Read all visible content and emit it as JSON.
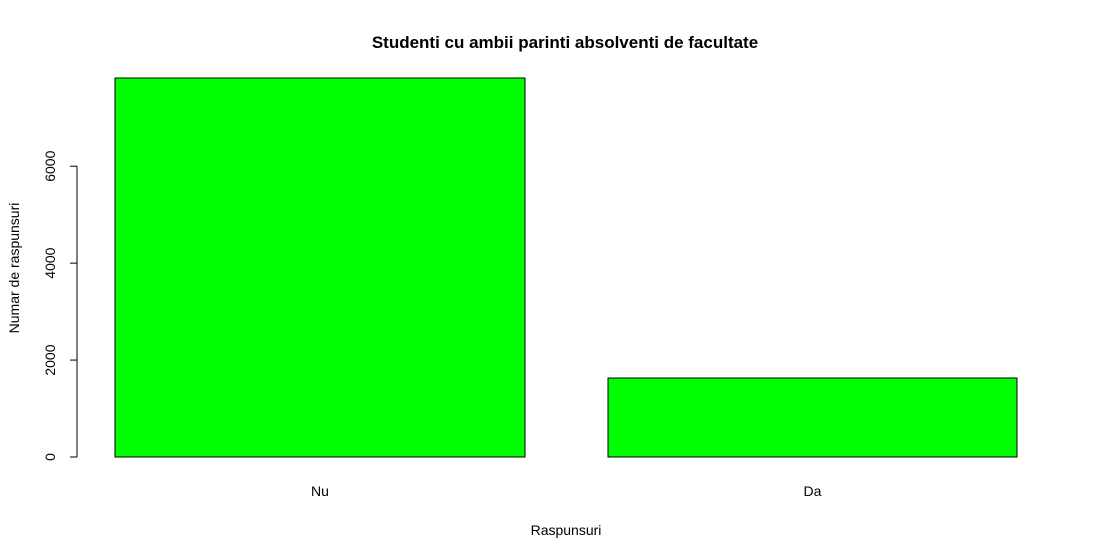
{
  "chart_data": {
    "type": "bar",
    "title": "Studenti cu ambii parinti absolventi de facultate",
    "xlabel": "Raspunsuri",
    "ylabel": "Numar de raspunsuri",
    "categories": [
      "Nu",
      "Da"
    ],
    "values": [
      7820,
      1630
    ],
    "yticks": [
      0,
      2000,
      4000,
      6000
    ],
    "ylim": [
      0,
      7820
    ],
    "bar_color": "#00ff00",
    "grid": false
  }
}
